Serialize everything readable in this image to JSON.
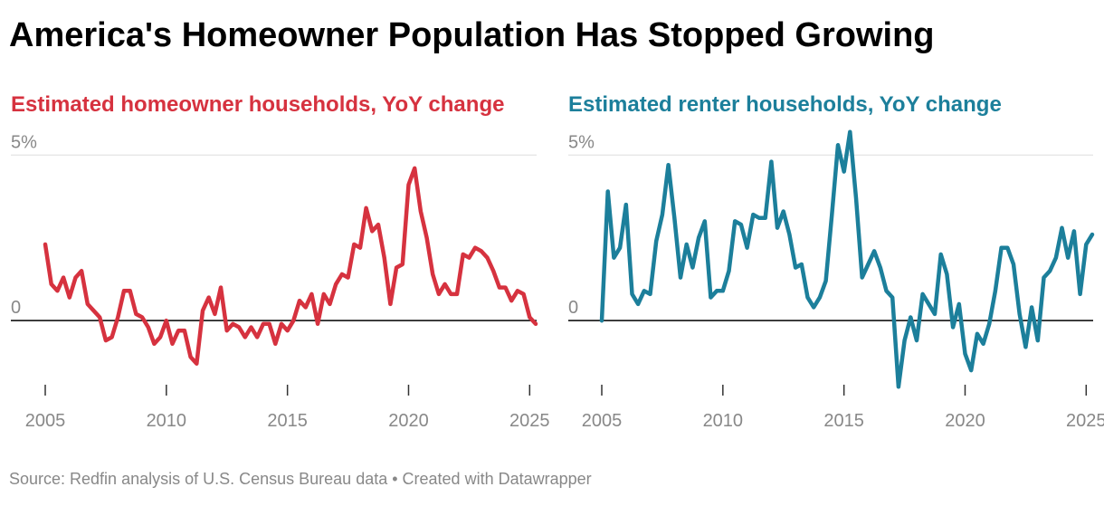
{
  "title": "America's Homeowner Population Has Stopped Growing",
  "source": "Source: Redfin analysis of U.S. Census Bureau data • Created with Datawrapper",
  "chart_data": [
    {
      "type": "line",
      "title": "Estimated homeowner households, YoY change",
      "color": "#d6323f",
      "grid": true,
      "x": [
        2005,
        2005.25,
        2005.5,
        2005.75,
        2006,
        2006.25,
        2006.5,
        2006.75,
        2007,
        2007.25,
        2007.5,
        2007.75,
        2008,
        2008.25,
        2008.5,
        2008.75,
        2009,
        2009.25,
        2009.5,
        2009.75,
        2010,
        2010.25,
        2010.5,
        2010.75,
        2011,
        2011.25,
        2011.5,
        2011.75,
        2012,
        2012.25,
        2012.5,
        2012.75,
        2013,
        2013.25,
        2013.5,
        2013.75,
        2014,
        2014.25,
        2014.5,
        2014.75,
        2015,
        2015.25,
        2015.5,
        2015.75,
        2016,
        2016.25,
        2016.5,
        2016.75,
        2017,
        2017.25,
        2017.5,
        2017.75,
        2018,
        2018.25,
        2018.5,
        2018.75,
        2019,
        2019.25,
        2019.5,
        2019.75,
        2020,
        2020.25,
        2020.5,
        2020.75,
        2021,
        2021.25,
        2021.5,
        2021.75,
        2022,
        2022.25,
        2022.5,
        2022.75,
        2023,
        2023.25,
        2023.5,
        2023.75,
        2024,
        2024.25,
        2024.5,
        2024.75,
        2025,
        2025.25
      ],
      "values": [
        2.3,
        1.1,
        0.9,
        1.3,
        0.7,
        1.3,
        1.5,
        0.5,
        0.3,
        0.1,
        -0.6,
        -0.5,
        0.1,
        0.9,
        0.9,
        0.2,
        0.1,
        -0.2,
        -0.7,
        -0.5,
        0.0,
        -0.7,
        -0.3,
        -0.3,
        -1.1,
        -1.3,
        0.3,
        0.7,
        0.2,
        1.0,
        -0.3,
        -0.1,
        -0.2,
        -0.5,
        -0.2,
        -0.5,
        -0.1,
        -0.1,
        -0.7,
        -0.1,
        -0.3,
        0.0,
        0.6,
        0.4,
        0.8,
        -0.1,
        0.8,
        0.5,
        1.1,
        1.4,
        1.3,
        2.3,
        2.2,
        3.4,
        2.7,
        2.9,
        1.9,
        0.5,
        1.6,
        1.7,
        4.1,
        4.6,
        3.3,
        2.5,
        1.4,
        0.8,
        1.1,
        0.8,
        0.8,
        2.0,
        1.9,
        2.2,
        2.1,
        1.9,
        1.5,
        1.0,
        1.0,
        0.6,
        0.9,
        0.8,
        0.1,
        -0.1
      ],
      "xlim": [
        2005,
        2025.25
      ],
      "ylim": [
        -2.1,
        5.8
      ],
      "xticks": [
        2005,
        2010,
        2015,
        2020,
        2025
      ],
      "yticks": [
        0,
        {
          "value": 5,
          "label": "5%"
        }
      ]
    },
    {
      "type": "line",
      "title": "Estimated renter households, YoY change",
      "color": "#1c7f9b",
      "grid": true,
      "x": [
        2005,
        2005.25,
        2005.5,
        2005.75,
        2006,
        2006.25,
        2006.5,
        2006.75,
        2007,
        2007.25,
        2007.5,
        2007.75,
        2008,
        2008.25,
        2008.5,
        2008.75,
        2009,
        2009.25,
        2009.5,
        2009.75,
        2010,
        2010.25,
        2010.5,
        2010.75,
        2011,
        2011.25,
        2011.5,
        2011.75,
        2012,
        2012.25,
        2012.5,
        2012.75,
        2013,
        2013.25,
        2013.5,
        2013.75,
        2014,
        2014.25,
        2014.5,
        2014.75,
        2015,
        2015.25,
        2015.5,
        2015.75,
        2016,
        2016.25,
        2016.5,
        2016.75,
        2017,
        2017.25,
        2017.5,
        2017.75,
        2018,
        2018.25,
        2018.5,
        2018.75,
        2019,
        2019.25,
        2019.5,
        2019.75,
        2020,
        2020.25,
        2020.5,
        2020.75,
        2021,
        2021.25,
        2021.5,
        2021.75,
        2022,
        2022.25,
        2022.5,
        2022.75,
        2023,
        2023.25,
        2023.5,
        2023.75,
        2024,
        2024.25,
        2024.5,
        2024.75,
        2025,
        2025.25
      ],
      "values": [
        0.0,
        3.9,
        1.9,
        2.2,
        3.5,
        0.8,
        0.5,
        0.9,
        0.8,
        2.4,
        3.2,
        4.7,
        3.1,
        1.3,
        2.3,
        1.6,
        2.5,
        3.0,
        0.7,
        0.9,
        0.9,
        1.5,
        3.0,
        2.9,
        2.2,
        3.2,
        3.1,
        3.1,
        4.8,
        2.8,
        3.3,
        2.6,
        1.6,
        1.7,
        0.7,
        0.4,
        0.7,
        1.2,
        3.2,
        5.3,
        4.5,
        5.7,
        3.7,
        1.3,
        1.7,
        2.1,
        1.6,
        0.9,
        0.7,
        -2.0,
        -0.6,
        0.1,
        -0.6,
        0.8,
        0.5,
        0.2,
        2.0,
        1.4,
        -0.2,
        0.5,
        -1.0,
        -1.5,
        -0.4,
        -0.7,
        -0.1,
        0.9,
        2.2,
        2.2,
        1.7,
        0.2,
        -0.8,
        0.4,
        -0.6,
        1.3,
        1.5,
        1.9,
        2.8,
        1.9,
        2.7,
        0.8,
        2.3,
        2.6
      ],
      "xlim": [
        2005,
        2025.25
      ],
      "ylim": [
        -2.1,
        5.8
      ],
      "xticks": [
        2005,
        2010,
        2015,
        2020,
        2025
      ],
      "yticks": [
        0,
        {
          "value": 5,
          "label": "5%"
        }
      ]
    }
  ]
}
